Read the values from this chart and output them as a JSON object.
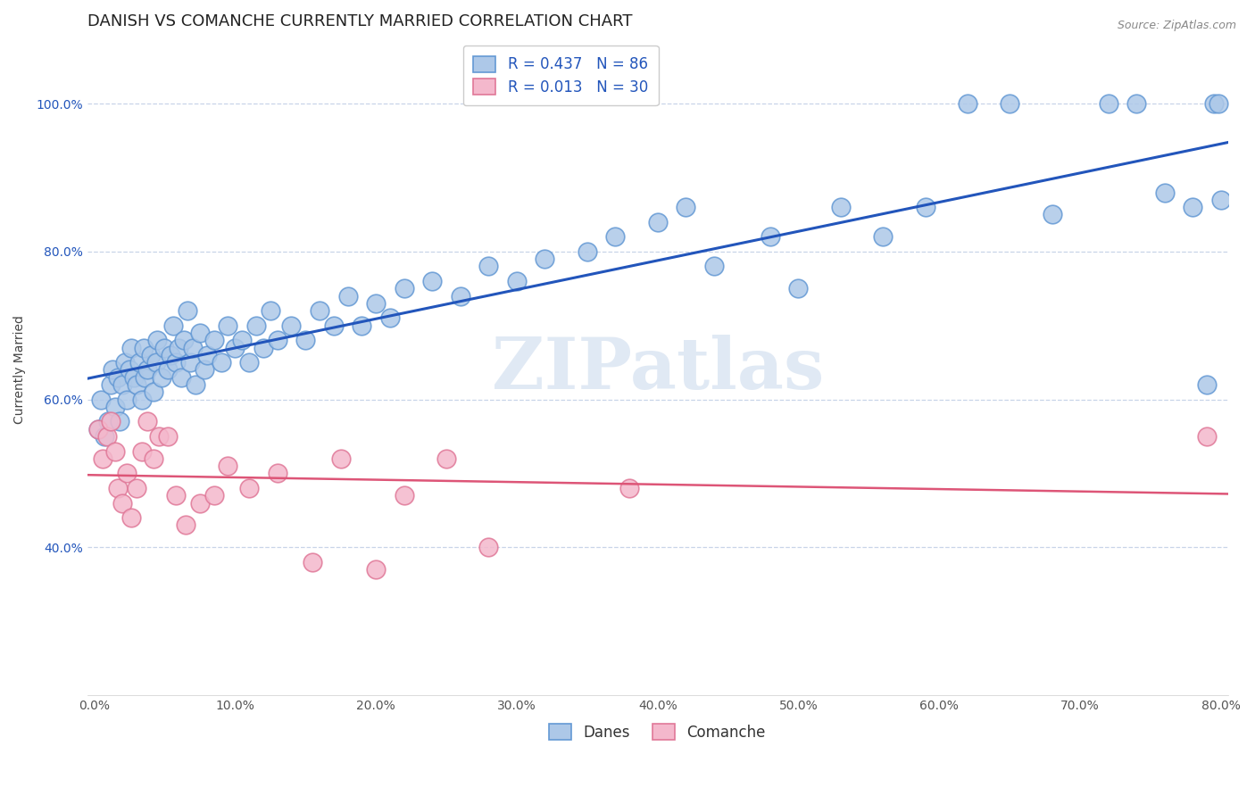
{
  "title": "DANISH VS COMANCHE CURRENTLY MARRIED CORRELATION CHART",
  "source": "Source: ZipAtlas.com",
  "ylabel": "Currently Married",
  "xlim": [
    -0.005,
    0.805
  ],
  "ylim": [
    0.2,
    1.08
  ],
  "danes_color": "#adc8e8",
  "danes_edge_color": "#6499d4",
  "comanche_color": "#f4b8cc",
  "comanche_edge_color": "#e07898",
  "danes_line_color": "#2255bb",
  "comanche_line_color": "#dd5577",
  "legend_r_danes": "R = 0.437",
  "legend_n_danes": "N = 86",
  "legend_r_comanche": "R = 0.013",
  "legend_n_comanche": "N = 30",
  "watermark": "ZIPatlas",
  "background_color": "#ffffff",
  "grid_color": "#c8d4e8",
  "title_fontsize": 13,
  "axis_label_fontsize": 10,
  "tick_fontsize": 10,
  "legend_fontsize": 12,
  "watermark_color": "#c8d8ec",
  "danes_scatter_x": [
    0.003,
    0.005,
    0.007,
    0.01,
    0.012,
    0.013,
    0.015,
    0.017,
    0.018,
    0.02,
    0.022,
    0.023,
    0.025,
    0.026,
    0.028,
    0.03,
    0.032,
    0.034,
    0.035,
    0.036,
    0.038,
    0.04,
    0.042,
    0.044,
    0.045,
    0.048,
    0.05,
    0.052,
    0.054,
    0.056,
    0.058,
    0.06,
    0.062,
    0.064,
    0.066,
    0.068,
    0.07,
    0.072,
    0.075,
    0.078,
    0.08,
    0.085,
    0.09,
    0.095,
    0.1,
    0.105,
    0.11,
    0.115,
    0.12,
    0.125,
    0.13,
    0.14,
    0.15,
    0.16,
    0.17,
    0.18,
    0.19,
    0.2,
    0.21,
    0.22,
    0.24,
    0.26,
    0.28,
    0.3,
    0.32,
    0.35,
    0.37,
    0.4,
    0.42,
    0.44,
    0.48,
    0.5,
    0.53,
    0.56,
    0.59,
    0.62,
    0.65,
    0.68,
    0.72,
    0.74,
    0.76,
    0.78,
    0.79,
    0.795,
    0.798,
    0.8
  ],
  "danes_scatter_y": [
    0.56,
    0.6,
    0.55,
    0.57,
    0.62,
    0.64,
    0.59,
    0.63,
    0.57,
    0.62,
    0.65,
    0.6,
    0.64,
    0.67,
    0.63,
    0.62,
    0.65,
    0.6,
    0.67,
    0.63,
    0.64,
    0.66,
    0.61,
    0.65,
    0.68,
    0.63,
    0.67,
    0.64,
    0.66,
    0.7,
    0.65,
    0.67,
    0.63,
    0.68,
    0.72,
    0.65,
    0.67,
    0.62,
    0.69,
    0.64,
    0.66,
    0.68,
    0.65,
    0.7,
    0.67,
    0.68,
    0.65,
    0.7,
    0.67,
    0.72,
    0.68,
    0.7,
    0.68,
    0.72,
    0.7,
    0.74,
    0.7,
    0.73,
    0.71,
    0.75,
    0.76,
    0.74,
    0.78,
    0.76,
    0.79,
    0.8,
    0.82,
    0.84,
    0.86,
    0.78,
    0.82,
    0.75,
    0.86,
    0.82,
    0.86,
    1.0,
    1.0,
    0.85,
    1.0,
    1.0,
    0.88,
    0.86,
    0.62,
    1.0,
    1.0,
    0.87
  ],
  "comanche_scatter_x": [
    0.003,
    0.006,
    0.009,
    0.012,
    0.015,
    0.017,
    0.02,
    0.023,
    0.026,
    0.03,
    0.034,
    0.038,
    0.042,
    0.046,
    0.052,
    0.058,
    0.065,
    0.075,
    0.085,
    0.095,
    0.11,
    0.13,
    0.155,
    0.175,
    0.2,
    0.22,
    0.25,
    0.28,
    0.38,
    0.79
  ],
  "comanche_scatter_y": [
    0.56,
    0.52,
    0.55,
    0.57,
    0.53,
    0.48,
    0.46,
    0.5,
    0.44,
    0.48,
    0.53,
    0.57,
    0.52,
    0.55,
    0.55,
    0.47,
    0.43,
    0.46,
    0.47,
    0.51,
    0.48,
    0.5,
    0.38,
    0.52,
    0.37,
    0.47,
    0.52,
    0.4,
    0.48,
    0.55
  ]
}
